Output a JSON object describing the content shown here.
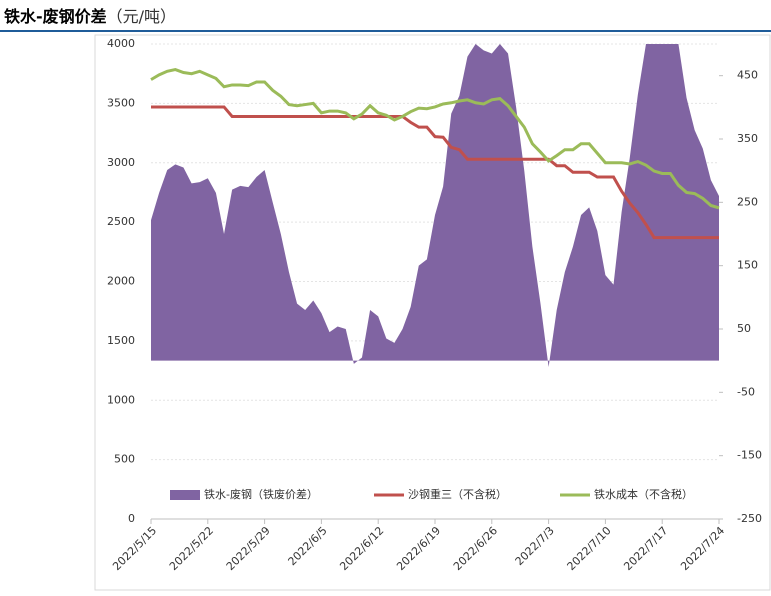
{
  "chart_data": {
    "type": "line-area",
    "title": "铁水-废钢价差",
    "unit": "（元/吨）",
    "x": [
      "2022/5/15",
      "2022/5/16",
      "2022/5/17",
      "2022/5/18",
      "2022/5/19",
      "2022/5/20",
      "2022/5/21",
      "2022/5/22",
      "2022/5/23",
      "2022/5/24",
      "2022/5/25",
      "2022/5/26",
      "2022/5/27",
      "2022/5/28",
      "2022/5/29",
      "2022/5/30",
      "2022/5/31",
      "2022/6/1",
      "2022/6/2",
      "2022/6/3",
      "2022/6/4",
      "2022/6/5",
      "2022/6/6",
      "2022/6/7",
      "2022/6/8",
      "2022/6/9",
      "2022/6/10",
      "2022/6/11",
      "2022/6/12",
      "2022/6/13",
      "2022/6/14",
      "2022/6/15",
      "2022/6/16",
      "2022/6/17",
      "2022/6/18",
      "2022/6/19",
      "2022/6/20",
      "2022/6/21",
      "2022/6/22",
      "2022/6/23",
      "2022/6/24",
      "2022/6/25",
      "2022/6/26",
      "2022/6/27",
      "2022/6/28",
      "2022/6/29",
      "2022/6/30",
      "2022/7/1",
      "2022/7/2",
      "2022/7/3",
      "2022/7/4",
      "2022/7/5",
      "2022/7/6",
      "2022/7/7",
      "2022/7/8",
      "2022/7/9",
      "2022/7/10",
      "2022/7/11",
      "2022/7/12",
      "2022/7/13",
      "2022/7/14",
      "2022/7/15",
      "2022/7/16",
      "2022/7/17",
      "2022/7/18",
      "2022/7/19",
      "2022/7/20",
      "2022/7/21",
      "2022/7/22",
      "2022/7/23",
      "2022/7/24"
    ],
    "xticks": [
      "2022/5/15",
      "2022/5/22",
      "2022/5/29",
      "2022/6/5",
      "2022/6/12",
      "2022/6/19",
      "2022/6/26",
      "2022/7/3",
      "2022/7/10",
      "2022/7/17",
      "2022/7/24"
    ],
    "ylim": [
      0,
      4000
    ],
    "yticks": [
      0,
      500,
      1000,
      1500,
      2000,
      2500,
      3000,
      3500,
      4000
    ],
    "y2lim": [
      -250,
      500
    ],
    "y2ticks": [
      -250,
      -150,
      -50,
      50,
      150,
      250,
      350,
      450
    ],
    "series": [
      {
        "name": "铁水-废钢（铁废价差）",
        "type": "area",
        "axis": "y2",
        "color": "#8064a2",
        "values": [
          222,
          265,
          301,
          310,
          305,
          280,
          282,
          288,
          265,
          200,
          270,
          276,
          274,
          290,
          301,
          250,
          200,
          140,
          90,
          80,
          95,
          75,
          45,
          54,
          50,
          -5,
          5,
          80,
          70,
          35,
          28,
          50,
          85,
          150,
          160,
          230,
          275,
          390,
          418,
          480,
          500,
          490,
          485,
          500,
          485,
          400,
          300,
          180,
          90,
          -10,
          80,
          140,
          180,
          230,
          242,
          205,
          135,
          120,
          235,
          320,
          420,
          500,
          500,
          500,
          500,
          500,
          415,
          364,
          335,
          285,
          260
        ]
      },
      {
        "name": "沙钢重三（不含税）",
        "type": "line",
        "color": "#c0504d",
        "values": [
          3470,
          3470,
          3470,
          3470,
          3470,
          3470,
          3470,
          3470,
          3470,
          3470,
          3390,
          3390,
          3390,
          3390,
          3390,
          3390,
          3390,
          3390,
          3390,
          3390,
          3390,
          3390,
          3390,
          3390,
          3390,
          3390,
          3390,
          3390,
          3390,
          3390,
          3390,
          3390,
          3340,
          3300,
          3300,
          3220,
          3215,
          3130,
          3110,
          3030,
          3030,
          3030,
          3030,
          3030,
          3030,
          3030,
          3030,
          3030,
          3030,
          3030,
          2975,
          2975,
          2920,
          2920,
          2920,
          2880,
          2880,
          2880,
          2760,
          2660,
          2580,
          2480,
          2370,
          2370,
          2370,
          2370,
          2370,
          2370,
          2370,
          2370,
          2370
        ]
      },
      {
        "name": "铁水成本（不含税）",
        "type": "line",
        "color": "#9bbb59",
        "values": [
          3700,
          3740,
          3770,
          3785,
          3760,
          3750,
          3770,
          3740,
          3710,
          3640,
          3655,
          3655,
          3650,
          3680,
          3680,
          3610,
          3560,
          3490,
          3480,
          3490,
          3500,
          3420,
          3435,
          3435,
          3420,
          3370,
          3410,
          3480,
          3420,
          3400,
          3360,
          3390,
          3430,
          3460,
          3455,
          3470,
          3495,
          3505,
          3520,
          3530,
          3505,
          3495,
          3530,
          3540,
          3480,
          3390,
          3300,
          3160,
          3090,
          3015,
          3060,
          3110,
          3110,
          3160,
          3160,
          3080,
          3000,
          3000,
          3000,
          2990,
          3010,
          2980,
          2930,
          2910,
          2910,
          2810,
          2750,
          2740,
          2700,
          2640,
          2620
        ]
      }
    ]
  }
}
